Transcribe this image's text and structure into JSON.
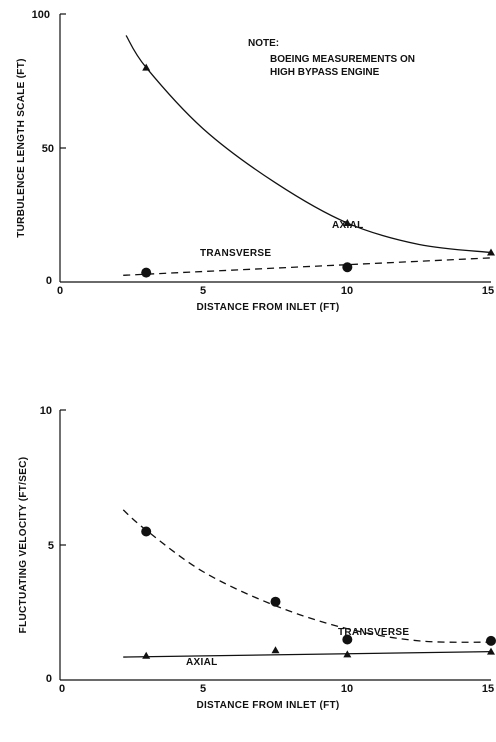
{
  "chart_data": [
    {
      "type": "line",
      "xlabel": "DISTANCE FROM INLET (FT)",
      "ylabel": "TURBULENCE LENGTH SCALE (FT)",
      "xlim": [
        0,
        15
      ],
      "ylim": [
        0,
        100
      ],
      "xticks": [
        "0",
        "5",
        "10",
        "15"
      ],
      "yticks": [
        "0",
        "50",
        "100"
      ],
      "note": [
        "NOTE:",
        "BOEING MEASUREMENTS ON",
        "HIGH BYPASS ENGINE"
      ],
      "series": [
        {
          "name": "AXIAL",
          "marker": "triangle",
          "line": "solid",
          "points": [
            [
              3,
              80
            ],
            [
              10,
              22
            ],
            [
              15,
              11
            ]
          ],
          "curve": [
            [
              2.3,
              92
            ],
            [
              3,
              80
            ],
            [
              5,
              57
            ],
            [
              7.5,
              37
            ],
            [
              10,
              22
            ],
            [
              12.5,
              14
            ],
            [
              15,
              11
            ]
          ]
        },
        {
          "name": "TRANSVERSE",
          "marker": "circle",
          "line": "dashed",
          "points": [
            [
              3,
              3.5
            ],
            [
              10,
              5.5
            ]
          ],
          "curve": [
            [
              2.2,
              2.5
            ],
            [
              15,
              9
            ]
          ]
        }
      ]
    },
    {
      "type": "line",
      "xlabel": "DISTANCE FROM INLET (FT)",
      "ylabel": "FLUCTUATING VELOCITY (FT/SEC)",
      "xlim": [
        0,
        15
      ],
      "ylim": [
        0,
        10
      ],
      "xticks": [
        "0",
        "5",
        "10",
        "15"
      ],
      "yticks": [
        "0",
        "5",
        "10"
      ],
      "series": [
        {
          "name": "TRANSVERSE",
          "marker": "circle",
          "line": "dashed",
          "points": [
            [
              3,
              5.5
            ],
            [
              7.5,
              2.9
            ],
            [
              10,
              1.5
            ],
            [
              15,
              1.45
            ]
          ],
          "curve": [
            [
              2.2,
              6.3
            ],
            [
              3,
              5.55
            ],
            [
              5,
              4.0
            ],
            [
              7.5,
              2.75
            ],
            [
              10,
              1.9
            ],
            [
              12.5,
              1.45
            ],
            [
              15,
              1.4
            ]
          ]
        },
        {
          "name": "AXIAL",
          "marker": "triangle",
          "line": "solid",
          "points": [
            [
              3,
              0.9
            ],
            [
              7.5,
              1.1
            ],
            [
              10,
              0.95
            ],
            [
              15,
              1.05
            ]
          ],
          "curve": [
            [
              2.2,
              0.85
            ],
            [
              15,
              1.05
            ]
          ]
        }
      ]
    }
  ]
}
